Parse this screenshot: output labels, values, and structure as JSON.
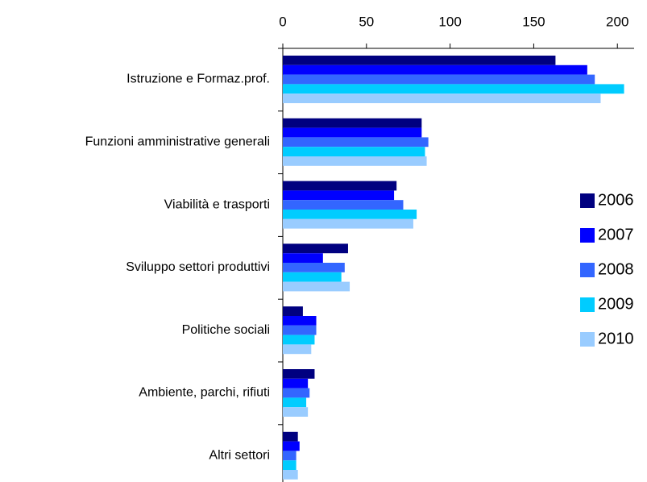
{
  "chart_data": {
    "type": "hbar",
    "categories": [
      "Istruzione e Formaz.prof.",
      "Funzioni amministrative generali",
      "Viabilità e trasporti",
      "Sviluppo settori produttivi",
      "Politiche sociali",
      "Ambiente, parchi, rifiuti",
      "Altri settori"
    ],
    "series": [
      {
        "name": "2006",
        "color": "#000080",
        "values": [
          163,
          83,
          68,
          39,
          12,
          19,
          9
        ]
      },
      {
        "name": "2007",
        "color": "#0000ff",
        "values": [
          182,
          83,
          66.5,
          24,
          20,
          15,
          10
        ]
      },
      {
        "name": "2008",
        "color": "#3366ff",
        "values": [
          186.5,
          87,
          72,
          37,
          20,
          16,
          8
        ]
      },
      {
        "name": "2009",
        "color": "#00ccff",
        "values": [
          204,
          85,
          80,
          35,
          19,
          14,
          8
        ]
      },
      {
        "name": "2010",
        "color": "#99ccff",
        "values": [
          190,
          86,
          78,
          40,
          17,
          15,
          9
        ]
      }
    ],
    "xlim": [
      0,
      210
    ],
    "xticks": [
      0,
      50,
      100,
      150,
      200
    ],
    "legend": "right"
  }
}
